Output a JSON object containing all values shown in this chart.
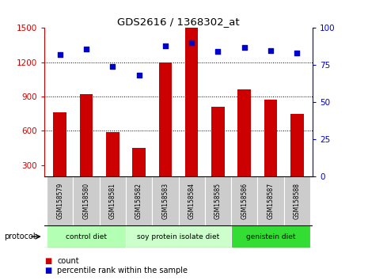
{
  "title": "GDS2616 / 1368302_at",
  "samples": [
    "GSM158579",
    "GSM158580",
    "GSM158581",
    "GSM158582",
    "GSM158583",
    "GSM158584",
    "GSM158585",
    "GSM158586",
    "GSM158587",
    "GSM158588"
  ],
  "bar_values": [
    760,
    920,
    590,
    450,
    1195,
    1500,
    810,
    960,
    870,
    745
  ],
  "scatter_values": [
    82,
    86,
    74,
    68,
    88,
    90,
    84,
    87,
    85,
    83
  ],
  "ylim_left": [
    200,
    1500
  ],
  "ylim_right": [
    0,
    100
  ],
  "yticks_left": [
    300,
    600,
    900,
    1200,
    1500
  ],
  "yticks_right": [
    0,
    25,
    50,
    75,
    100
  ],
  "bar_color": "#cc0000",
  "scatter_color": "#0000cc",
  "groups": [
    {
      "label": "control diet",
      "start": 0,
      "end": 3,
      "color": "#b3ffb3"
    },
    {
      "label": "soy protein isolate diet",
      "start": 3,
      "end": 7,
      "color": "#ccffcc"
    },
    {
      "label": "genistein diet",
      "start": 7,
      "end": 10,
      "color": "#33dd33"
    }
  ],
  "legend_count_label": "count",
  "legend_pct_label": "percentile rank within the sample",
  "protocol_label": "protocol",
  "bg_color": "#ffffff",
  "tick_label_bg": "#cccccc",
  "grid_yticks": [
    600,
    900,
    1200
  ]
}
